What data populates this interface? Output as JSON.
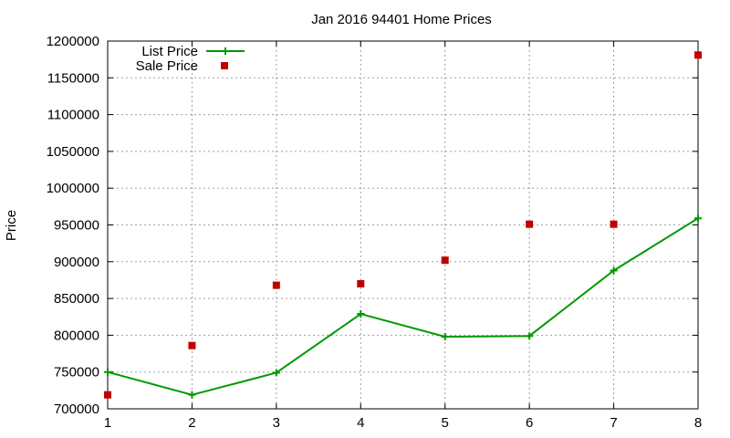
{
  "chart_data": {
    "type": "line",
    "title": "Jan 2016 94401 Home Prices",
    "xlabel": "",
    "ylabel": "Price",
    "x": [
      1,
      2,
      3,
      4,
      5,
      6,
      7,
      8
    ],
    "xlim": [
      1,
      8
    ],
    "ylim": [
      700000,
      1200000
    ],
    "yticks": [
      700000,
      750000,
      800000,
      850000,
      900000,
      950000,
      1000000,
      1050000,
      1100000,
      1150000,
      1200000
    ],
    "xticks": [
      1,
      2,
      3,
      4,
      5,
      6,
      7,
      8
    ],
    "grid": true,
    "legend_position": "top-left",
    "series": [
      {
        "name": "List Price",
        "style": "line-with-plus",
        "color": "#009900",
        "values": [
          750000,
          719000,
          749000,
          829000,
          798000,
          799000,
          888000,
          959000
        ]
      },
      {
        "name": "Sale Price",
        "style": "square-points",
        "color": "#c00000",
        "values": [
          719000,
          786000,
          868000,
          870000,
          902000,
          951000,
          951000,
          1181000
        ]
      }
    ]
  }
}
